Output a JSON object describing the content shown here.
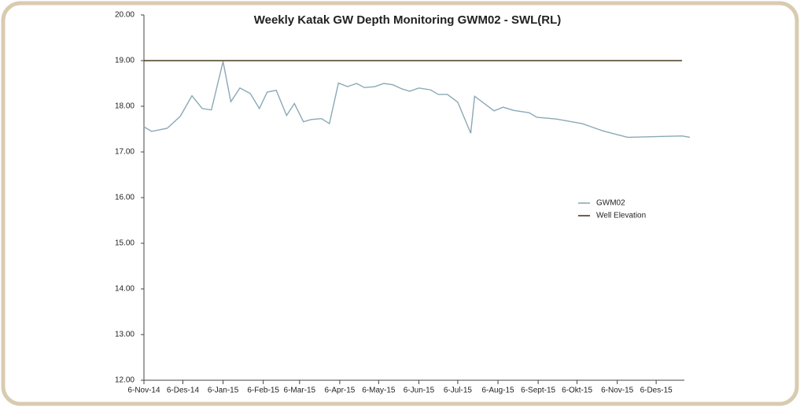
{
  "chart_data": {
    "type": "line",
    "title": "Weekly Katak GW Depth Monitoring GWM02 - SWL(RL)",
    "xlim": [
      "2014-11-06",
      "2016-01-01"
    ],
    "xticks": [
      {
        "value": "2014-11-06",
        "label": "6-Nov-14"
      },
      {
        "value": "2014-12-06",
        "label": "6-Des-14"
      },
      {
        "value": "2015-01-06",
        "label": "6-Jan-15"
      },
      {
        "value": "2015-02-06",
        "label": "6-Feb-15"
      },
      {
        "value": "2015-03-06",
        "label": "6-Mar-15"
      },
      {
        "value": "2015-04-06",
        "label": "6-Apr-15"
      },
      {
        "value": "2015-05-06",
        "label": "6-May-15"
      },
      {
        "value": "2015-06-06",
        "label": "6-Jun-15"
      },
      {
        "value": "2015-07-06",
        "label": "6-Jul-15"
      },
      {
        "value": "2015-08-06",
        "label": "6-Aug-15"
      },
      {
        "value": "2015-09-06",
        "label": "6-Sept-15"
      },
      {
        "value": "2015-10-06",
        "label": "6-Okt-15"
      },
      {
        "value": "2015-11-06",
        "label": "6-Nov-15"
      },
      {
        "value": "2015-12-06",
        "label": "6-Des-15"
      }
    ],
    "ylim": [
      12,
      20
    ],
    "yticks": [
      {
        "value": 12,
        "label": "12.00"
      },
      {
        "value": 13,
        "label": "13.00"
      },
      {
        "value": 14,
        "label": "14.00"
      },
      {
        "value": 15,
        "label": "15.00"
      },
      {
        "value": 16,
        "label": "16.00"
      },
      {
        "value": 17,
        "label": "17.00"
      },
      {
        "value": 18,
        "label": "18.00"
      },
      {
        "value": 19,
        "label": "19.00"
      },
      {
        "value": 20,
        "label": "20.00"
      }
    ],
    "legend": "right",
    "series": [
      {
        "name": "GWM02",
        "color": "#8aa9b5",
        "x": [
          "2014-11-06",
          "2014-11-12",
          "2014-11-24",
          "2014-12-04",
          "2014-12-13",
          "2014-12-21",
          "2014-12-28",
          "2015-01-06",
          "2015-01-12",
          "2015-01-19",
          "2015-01-27",
          "2015-02-03",
          "2015-02-09",
          "2015-02-16",
          "2015-02-24",
          "2015-03-02",
          "2015-03-09",
          "2015-03-15",
          "2015-03-23",
          "2015-03-29",
          "2015-04-05",
          "2015-04-12",
          "2015-04-19",
          "2015-04-25",
          "2015-05-03",
          "2015-05-10",
          "2015-05-17",
          "2015-05-24",
          "2015-05-30",
          "2015-06-06",
          "2015-06-15",
          "2015-06-21",
          "2015-06-28",
          "2015-07-06",
          "2015-07-16",
          "2015-07-19",
          "2015-08-03",
          "2015-08-10",
          "2015-08-18",
          "2015-08-30",
          "2015-09-05",
          "2015-09-20",
          "2015-10-10",
          "2015-10-26",
          "2015-11-14",
          "2015-12-26",
          "2016-01-01"
        ],
        "values": [
          17.55,
          17.45,
          17.52,
          17.78,
          18.23,
          17.95,
          17.92,
          18.98,
          18.1,
          18.4,
          18.28,
          17.95,
          18.31,
          18.35,
          17.8,
          18.06,
          17.66,
          17.71,
          17.73,
          17.62,
          18.51,
          18.43,
          18.5,
          18.41,
          18.43,
          18.5,
          18.47,
          18.38,
          18.33,
          18.4,
          18.36,
          18.26,
          18.26,
          18.09,
          17.41,
          18.22,
          17.9,
          17.98,
          17.91,
          17.86,
          17.76,
          17.72,
          17.62,
          17.46,
          17.32,
          17.35,
          17.32
        ]
      },
      {
        "name": "Well Elevation",
        "color": "#4a3b1e",
        "x": [
          "2014-11-06",
          "2015-12-26"
        ],
        "values": [
          19,
          19
        ]
      }
    ]
  }
}
